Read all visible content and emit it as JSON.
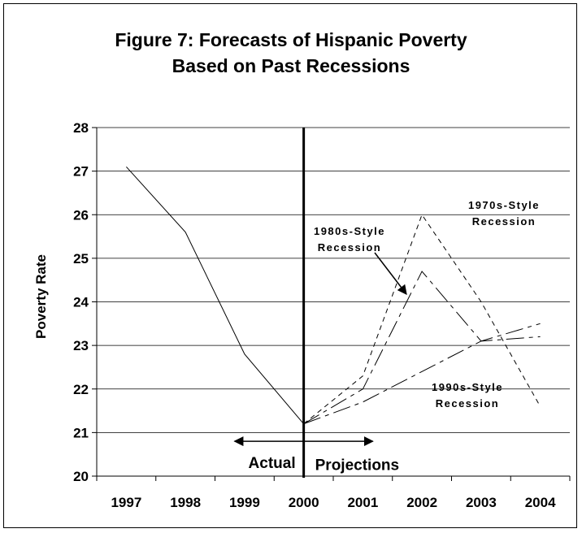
{
  "chart_data": {
    "type": "line",
    "title_lines": [
      "Figure 7: Forecasts of Hispanic Poverty",
      "Based on Past Recessions"
    ],
    "xlabel": "",
    "ylabel": "Poverty Rate",
    "categories": [
      "1997",
      "1998",
      "1999",
      "2000",
      "2001",
      "2002",
      "2003",
      "2004"
    ],
    "ylim": [
      20,
      28
    ],
    "yticks": [
      "20",
      "21",
      "22",
      "23",
      "24",
      "25",
      "26",
      "27",
      "28"
    ],
    "grid": true,
    "divider_at": "2000",
    "series": [
      {
        "key": "actual",
        "values": [
          27.1,
          25.6,
          22.8,
          21.2,
          null,
          null,
          null,
          null
        ],
        "dash": "solid"
      },
      {
        "key": "s1970",
        "values": [
          null,
          null,
          null,
          21.2,
          22.3,
          26.0,
          24.0,
          21.6
        ],
        "dash": "short"
      },
      {
        "key": "s1980",
        "values": [
          null,
          null,
          null,
          21.2,
          22.0,
          24.7,
          23.1,
          23.2
        ],
        "dash": "long"
      },
      {
        "key": "s1990",
        "values": [
          null,
          null,
          null,
          21.2,
          21.7,
          22.4,
          23.1,
          23.5
        ],
        "dash": "long"
      }
    ],
    "annotations": {
      "recession_1970": [
        "1970s-Style",
        "Recession"
      ],
      "recession_1980": [
        "1980s-Style",
        "Recession"
      ],
      "recession_1990": [
        "1990s-Style",
        "Recession"
      ],
      "actual": "Actual",
      "projections": "Projections"
    }
  }
}
